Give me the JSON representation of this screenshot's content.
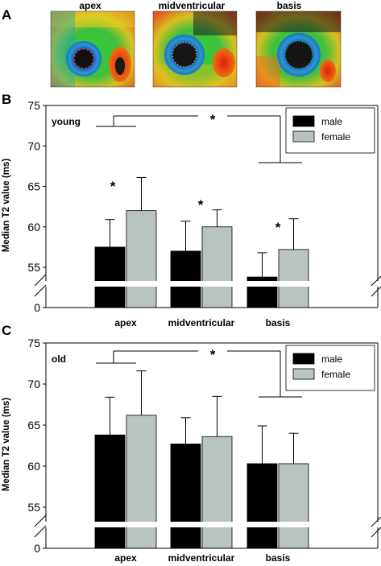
{
  "panel_a": {
    "letter": "A",
    "images": [
      {
        "title": "apex"
      },
      {
        "title": "midventricular"
      },
      {
        "title": "basis"
      }
    ]
  },
  "colors": {
    "male": "#000000",
    "female": "#b9c3c1",
    "axis": "#000000"
  },
  "chart_data": [
    {
      "panel": "B",
      "type": "bar",
      "group_label": "young",
      "categories": [
        "apex",
        "midventricular",
        "basis"
      ],
      "series": [
        {
          "name": "male",
          "values": [
            57.5,
            57.0,
            53.8
          ],
          "error": [
            3.4,
            3.7,
            3.0
          ]
        },
        {
          "name": "female",
          "values": [
            62.0,
            60.0,
            57.2
          ],
          "error": [
            4.1,
            2.1,
            3.8
          ]
        }
      ],
      "xlabel": "",
      "ylabel": "Median T2 value (ms)",
      "yticks": [
        55,
        60,
        65,
        70,
        75
      ],
      "ylim": [
        50,
        75
      ],
      "axis_break": true,
      "zero_tick": "0",
      "legend": "top-right",
      "significance": {
        "bracket_star": "*",
        "pair_stars": [
          "*",
          "*",
          "*"
        ]
      }
    },
    {
      "panel": "C",
      "type": "bar",
      "group_label": "old",
      "categories": [
        "apex",
        "midventricular",
        "basis"
      ],
      "series": [
        {
          "name": "male",
          "values": [
            63.8,
            62.7,
            60.3
          ],
          "error": [
            4.6,
            3.2,
            4.6
          ]
        },
        {
          "name": "female",
          "values": [
            66.2,
            63.6,
            60.3
          ],
          "error": [
            5.4,
            4.9,
            3.7
          ]
        }
      ],
      "xlabel": "",
      "ylabel": "Median T2 value (ms)",
      "yticks": [
        55,
        60,
        65,
        70,
        75
      ],
      "ylim": [
        50,
        75
      ],
      "axis_break": true,
      "zero_tick": "0",
      "legend": "top-right",
      "significance": {
        "bracket_star": "*",
        "pair_stars": []
      }
    }
  ]
}
